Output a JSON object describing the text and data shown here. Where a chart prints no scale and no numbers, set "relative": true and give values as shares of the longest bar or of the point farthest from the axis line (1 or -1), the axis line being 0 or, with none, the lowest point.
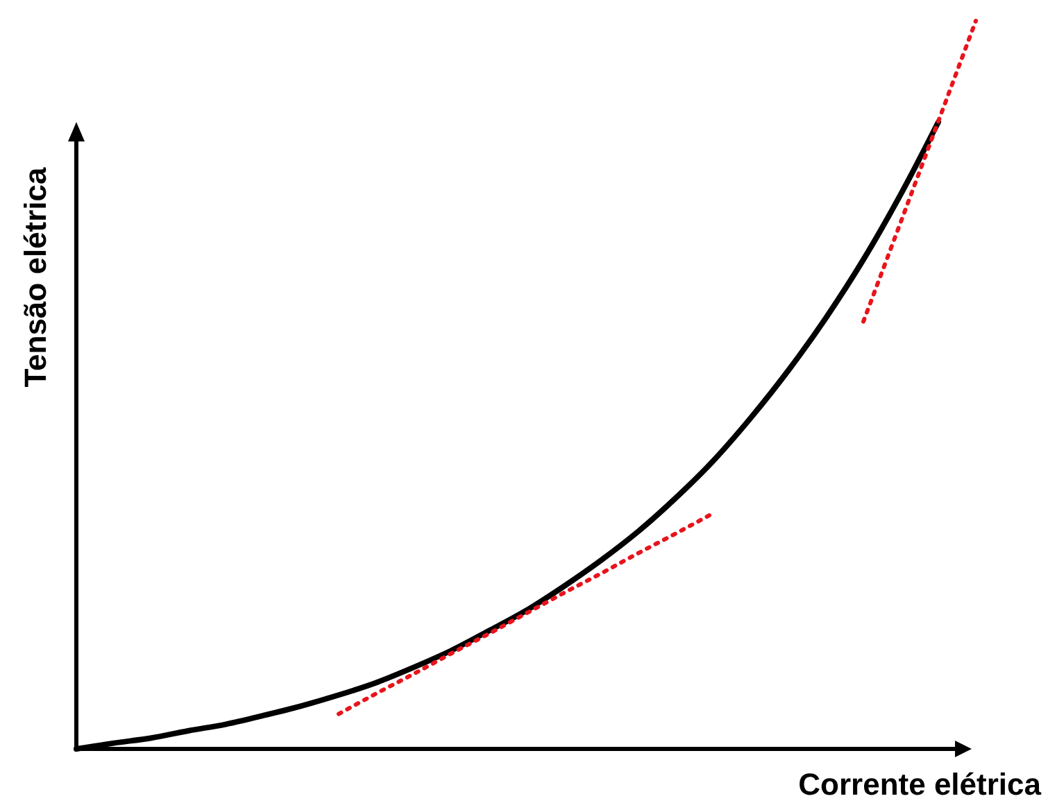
{
  "chart_data": {
    "type": "line",
    "relative": true,
    "xlabel": "Corrente elétrica",
    "ylabel": "Tensão elétrica",
    "categories": [
      null,
      null,
      null,
      null,
      null,
      null,
      null,
      null,
      null,
      null,
      null,
      null,
      null,
      null,
      null,
      null,
      null,
      null,
      null,
      null,
      null,
      null,
      null,
      null,
      null
    ],
    "series": [
      {
        "color": "#000000",
        "line_style": "solid",
        "values": [
          0,
          0.008,
          0.015,
          0.025,
          0.034,
          0.046,
          0.059,
          0.074,
          0.091,
          0.112,
          0.135,
          0.162,
          0.19,
          0.223,
          0.259,
          0.299,
          0.345,
          0.396,
          0.455,
          0.52,
          0.592,
          0.672,
          0.762,
          0.861,
          null
        ]
      },
      {
        "color": "#e8141c",
        "line_style": "dotted",
        "values": [
          null,
          null,
          null,
          null,
          null,
          null,
          null,
          0.048,
          0.076,
          0.103,
          0.131,
          0.158,
          0.186,
          0.214,
          0.241,
          0.269,
          0.296,
          0.324,
          null,
          null,
          null,
          null,
          null,
          null,
          null
        ]
      },
      {
        "color": "#e8141c",
        "line_style": "dotted",
        "values": [
          null,
          null,
          null,
          null,
          null,
          null,
          null,
          null,
          null,
          null,
          null,
          null,
          null,
          null,
          null,
          null,
          null,
          null,
          null,
          null,
          null,
          0.587,
          0.724,
          0.862,
          1
        ]
      }
    ]
  }
}
